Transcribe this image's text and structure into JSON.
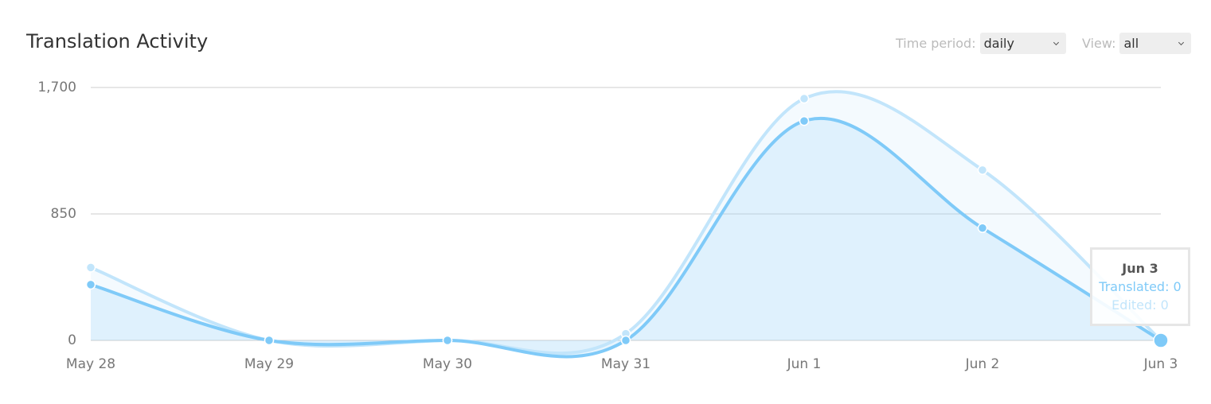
{
  "header": {
    "title": "Translation Activity",
    "controls": [
      {
        "label": "Time period:",
        "value": "daily"
      },
      {
        "label": "View:",
        "value": "all"
      }
    ]
  },
  "chart_data": {
    "type": "line",
    "categories": [
      "May 28",
      "May 29",
      "May 30",
      "May 31",
      "Jun 1",
      "Jun 2",
      "Jun 3"
    ],
    "series": [
      {
        "name": "Edited",
        "color": "#c2e5fb",
        "values": [
          490,
          0,
          0,
          45,
          1625,
          1145,
          0
        ]
      },
      {
        "name": "Translated",
        "color": "#7fcaf8",
        "values": [
          375,
          0,
          0,
          0,
          1475,
          755,
          0
        ]
      }
    ],
    "ylim": [
      0,
      1700
    ],
    "yticks": [
      0,
      850,
      {
        "value": 1700,
        "label": "1,700"
      }
    ],
    "grid": true,
    "tooltip": {
      "title": "Jun 3",
      "lines": [
        "Translated: 0",
        "Edited: 0"
      ]
    }
  }
}
